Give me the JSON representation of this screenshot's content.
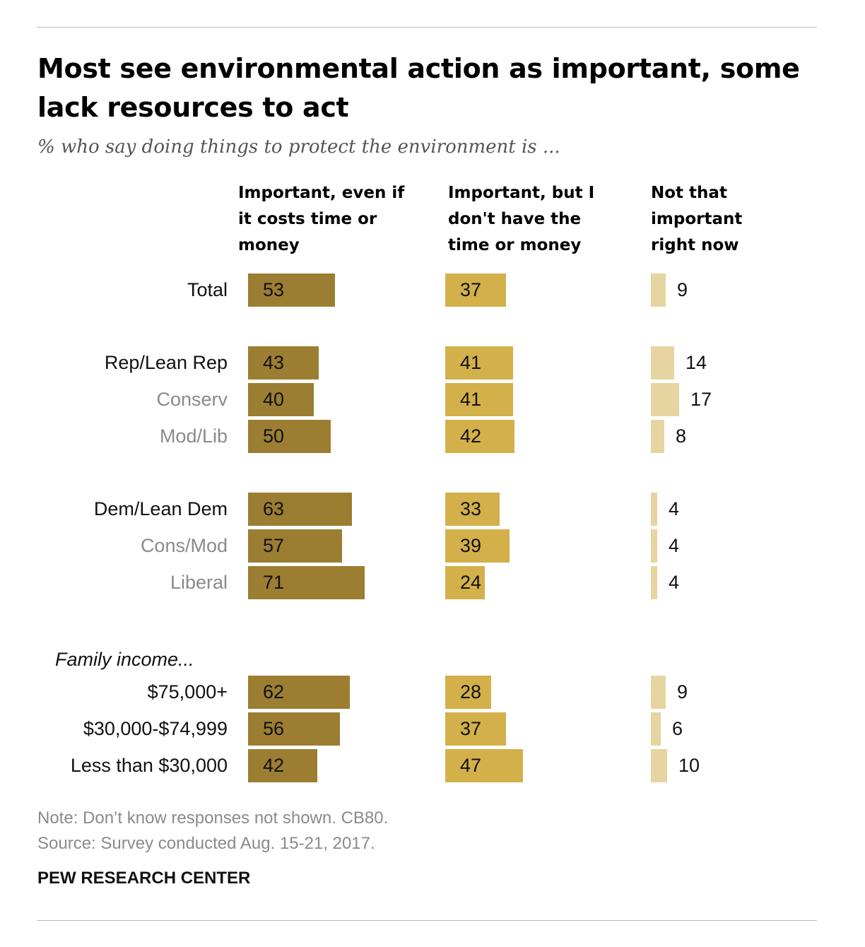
{
  "title": "Most see environmental action as important, some lack resources to act",
  "subtitle": "% who say doing things to protect the environment is ...",
  "note": "Note: Don’t know responses not shown. CB80.",
  "source": "Source: Survey conducted Aug. 15-21, 2017.",
  "brand": "PEW RESEARCH CENTER",
  "colors": {
    "important_even_if_costs": "#9b7e31",
    "important_no_time_money": "#d3b04a",
    "not_important": "#e6d5a1",
    "sub_label": "#8a8a8a"
  },
  "chart_data": {
    "type": "bar",
    "title": "Most see environmental action as important, some lack resources to act",
    "subtitle": "% who say doing things to protect the environment is ...",
    "series": [
      {
        "name": "Important, even if it costs time or money",
        "values": [
          53,
          43,
          40,
          50,
          63,
          57,
          71,
          62,
          56,
          42
        ]
      },
      {
        "name": "Important, but I don't have the time or money",
        "values": [
          37,
          41,
          41,
          42,
          33,
          39,
          24,
          28,
          37,
          47
        ]
      },
      {
        "name": "Not that important right now",
        "values": [
          9,
          14,
          17,
          8,
          4,
          4,
          4,
          9,
          6,
          10
        ]
      }
    ],
    "categories": [
      "Total",
      "Rep/Lean Rep",
      "Conserv",
      "Mod/Lib",
      "Dem/Lean Dem",
      "Cons/Mod",
      "Liberal",
      "$75,000+",
      "$30,000-$74,999",
      "Less than $30,000"
    ],
    "category_styles": [
      "main",
      "main",
      "sub",
      "sub",
      "main",
      "sub",
      "sub",
      "main",
      "main",
      "main"
    ],
    "group_label": "Family income...",
    "column_headers": [
      "Important, even if\nit costs time or\nmoney",
      "Important, but I\ndon't have the\ntime or money",
      "Not that\nimportant\nright now"
    ]
  }
}
